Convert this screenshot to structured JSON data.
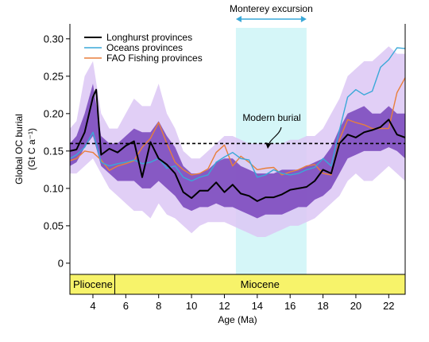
{
  "chart_data": {
    "type": "line",
    "xlabel": "Age (Ma)",
    "ylabel": "Global OC burial",
    "ylabel_unit": "(Gt C a⁻¹)",
    "xlim": [
      2.6,
      23.0
    ],
    "ylim": [
      -0.015,
      0.32
    ],
    "x_ticks": [
      4,
      6,
      8,
      10,
      12,
      14,
      16,
      18,
      20,
      22
    ],
    "y_ticks": [
      0,
      0.05,
      0.1,
      0.15,
      0.2,
      0.25,
      0.3
    ],
    "y_tick_labels": [
      "0",
      "0.05",
      "0.10",
      "0.15",
      "0.20",
      "0.25",
      "0.30"
    ],
    "grid": false,
    "legend_position": "top-left",
    "series": [
      {
        "name": "Longhurst provinces",
        "color": "#000000",
        "x": [
          2.6,
          3.0,
          3.5,
          4.0,
          4.2,
          4.5,
          5.0,
          5.5,
          6.0,
          6.5,
          7.0,
          7.5,
          8.0,
          8.5,
          9.0,
          9.5,
          10.0,
          10.5,
          11.0,
          11.5,
          12.0,
          12.5,
          13.0,
          13.5,
          14.0,
          14.5,
          15.0,
          15.5,
          16.0,
          16.5,
          17.0,
          17.5,
          18.0,
          18.5,
          19.0,
          19.5,
          20.0,
          20.5,
          21.0,
          21.5,
          22.0,
          22.5,
          23.0
        ],
        "values": [
          0.15,
          0.152,
          0.175,
          0.222,
          0.232,
          0.145,
          0.153,
          0.148,
          0.157,
          0.163,
          0.115,
          0.162,
          0.14,
          0.132,
          0.12,
          0.095,
          0.087,
          0.097,
          0.097,
          0.108,
          0.095,
          0.105,
          0.093,
          0.09,
          0.083,
          0.088,
          0.088,
          0.092,
          0.098,
          0.1,
          0.102,
          0.11,
          0.125,
          0.12,
          0.16,
          0.172,
          0.168,
          0.175,
          0.178,
          0.182,
          0.192,
          0.172,
          0.168
        ]
      },
      {
        "name": "Oceans provinces",
        "color": "#3aa8d8",
        "x": [
          2.6,
          3.0,
          3.5,
          4.0,
          4.5,
          5.0,
          5.5,
          6.0,
          6.5,
          7.0,
          7.5,
          8.0,
          8.5,
          9.0,
          9.5,
          10.0,
          10.5,
          11.0,
          11.5,
          12.0,
          12.5,
          13.0,
          13.5,
          14.0,
          14.5,
          15.0,
          15.5,
          16.0,
          16.5,
          17.0,
          17.5,
          18.0,
          18.5,
          19.0,
          19.5,
          20.0,
          20.5,
          21.0,
          21.5,
          22.0,
          22.5,
          23.0
        ],
        "values": [
          0.14,
          0.145,
          0.155,
          0.175,
          0.135,
          0.13,
          0.133,
          0.135,
          0.138,
          0.133,
          0.135,
          0.14,
          0.127,
          0.13,
          0.115,
          0.11,
          0.115,
          0.118,
          0.135,
          0.142,
          0.148,
          0.14,
          0.138,
          0.115,
          0.118,
          0.125,
          0.12,
          0.118,
          0.12,
          0.125,
          0.128,
          0.14,
          0.13,
          0.178,
          0.222,
          0.232,
          0.225,
          0.23,
          0.262,
          0.272,
          0.288,
          0.287
        ]
      },
      {
        "name": "FAO Fishing provinces",
        "color": "#e87f3b",
        "x": [
          2.6,
          3.0,
          3.5,
          4.0,
          4.5,
          5.0,
          5.5,
          6.0,
          6.5,
          7.0,
          7.5,
          8.0,
          8.5,
          9.0,
          9.5,
          10.0,
          10.5,
          11.0,
          11.5,
          12.0,
          12.5,
          13.0,
          13.5,
          14.0,
          14.5,
          15.0,
          15.5,
          16.0,
          16.5,
          17.0,
          17.5,
          18.0,
          18.5,
          19.0,
          19.5,
          20.0,
          20.5,
          21.0,
          21.5,
          22.0,
          22.5,
          23.0
        ],
        "values": [
          0.137,
          0.14,
          0.15,
          0.148,
          0.138,
          0.124,
          0.13,
          0.133,
          0.137,
          0.155,
          0.167,
          0.188,
          0.16,
          0.135,
          0.125,
          0.118,
          0.12,
          0.126,
          0.148,
          0.158,
          0.13,
          0.143,
          0.135,
          0.125,
          0.127,
          0.128,
          0.118,
          0.122,
          0.125,
          0.13,
          0.132,
          0.12,
          0.118,
          0.165,
          0.192,
          0.188,
          0.185,
          0.18,
          0.18,
          0.18,
          0.228,
          0.248
        ]
      }
    ],
    "bands": {
      "x": [
        2.6,
        3.0,
        3.5,
        4.0,
        4.5,
        5.0,
        5.5,
        6.0,
        6.5,
        7.0,
        7.5,
        8.0,
        8.5,
        9.0,
        9.5,
        10.0,
        10.5,
        11.0,
        11.5,
        12.0,
        12.5,
        13.0,
        13.5,
        14.0,
        14.5,
        15.0,
        15.5,
        16.0,
        16.5,
        17.0,
        17.5,
        18.0,
        18.5,
        19.0,
        19.5,
        20.0,
        20.5,
        21.0,
        21.5,
        22.0,
        22.5,
        23.0
      ],
      "outer_upper": [
        0.18,
        0.19,
        0.25,
        0.27,
        0.2,
        0.18,
        0.18,
        0.2,
        0.22,
        0.21,
        0.21,
        0.24,
        0.2,
        0.18,
        0.15,
        0.14,
        0.14,
        0.15,
        0.16,
        0.17,
        0.17,
        0.165,
        0.16,
        0.16,
        0.16,
        0.16,
        0.16,
        0.165,
        0.165,
        0.17,
        0.17,
        0.18,
        0.2,
        0.22,
        0.25,
        0.26,
        0.27,
        0.27,
        0.28,
        0.29,
        0.28,
        0.28
      ],
      "outer_lower": [
        0.12,
        0.12,
        0.13,
        0.14,
        0.12,
        0.1,
        0.09,
        0.08,
        0.07,
        0.07,
        0.06,
        0.08,
        0.065,
        0.06,
        0.05,
        0.04,
        0.05,
        0.055,
        0.055,
        0.055,
        0.05,
        0.045,
        0.04,
        0.035,
        0.035,
        0.04,
        0.045,
        0.05,
        0.05,
        0.055,
        0.06,
        0.07,
        0.08,
        0.09,
        0.11,
        0.12,
        0.11,
        0.11,
        0.12,
        0.13,
        0.12,
        0.11
      ],
      "inner_upper": [
        0.16,
        0.17,
        0.2,
        0.24,
        0.17,
        0.16,
        0.16,
        0.17,
        0.18,
        0.175,
        0.175,
        0.19,
        0.17,
        0.155,
        0.13,
        0.12,
        0.12,
        0.125,
        0.135,
        0.14,
        0.14,
        0.13,
        0.125,
        0.12,
        0.12,
        0.12,
        0.125,
        0.125,
        0.125,
        0.13,
        0.135,
        0.14,
        0.155,
        0.18,
        0.2,
        0.205,
        0.21,
        0.2,
        0.2,
        0.21,
        0.2,
        0.2
      ],
      "inner_lower": [
        0.13,
        0.135,
        0.155,
        0.17,
        0.13,
        0.12,
        0.11,
        0.11,
        0.11,
        0.1,
        0.1,
        0.11,
        0.1,
        0.09,
        0.075,
        0.07,
        0.075,
        0.075,
        0.08,
        0.075,
        0.075,
        0.07,
        0.065,
        0.06,
        0.065,
        0.065,
        0.065,
        0.07,
        0.075,
        0.075,
        0.085,
        0.09,
        0.1,
        0.12,
        0.14,
        0.145,
        0.15,
        0.15,
        0.15,
        0.155,
        0.15,
        0.14
      ],
      "outer_color": "#dcc7f5",
      "inner_color": "#7d4bbf"
    },
    "modern_burial": {
      "label": "Modern burial",
      "value": 0.16
    },
    "monterey_excursion": {
      "label": "Monterey excursion",
      "x_start": 12.7,
      "x_end": 17.0,
      "color": "#d5f6f8"
    },
    "epochs": [
      {
        "name": "Pliocene",
        "x_start": 2.6,
        "x_end": 5.33
      },
      {
        "name": "Miocene",
        "x_start": 5.33,
        "x_end": 23.0
      }
    ],
    "epoch_color": "#f7f36a"
  }
}
